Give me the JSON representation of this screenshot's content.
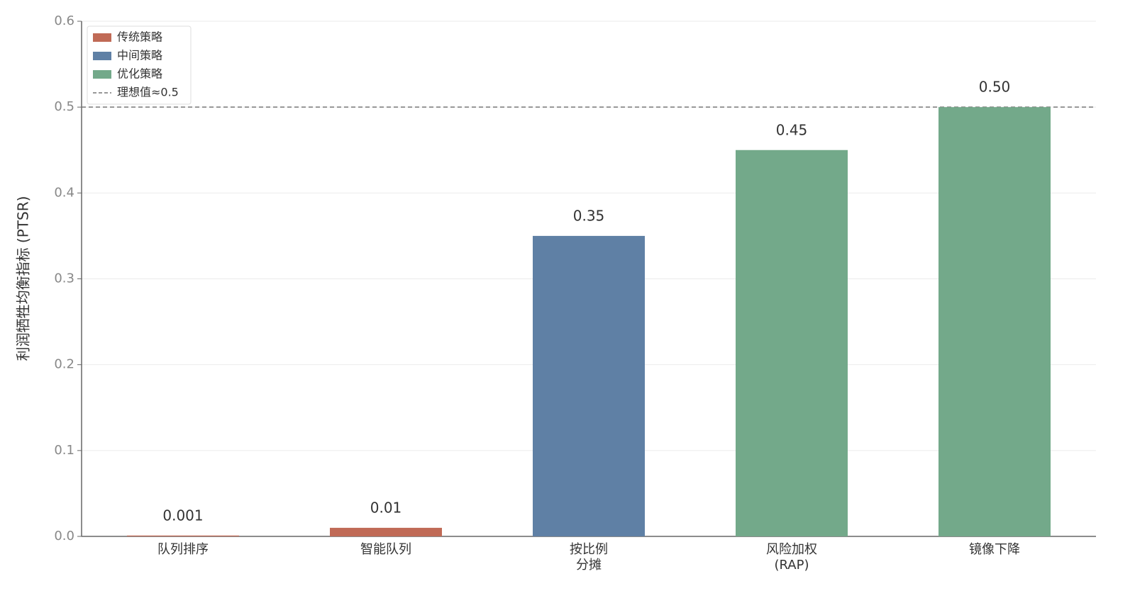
{
  "chart_data": {
    "type": "bar",
    "ylabel": "利润牺牲均衡指标 (PTSR)",
    "categories": [
      [
        "队列排序"
      ],
      [
        "智能队列"
      ],
      [
        "按比例",
        "分摊"
      ],
      [
        "风险加权",
        "(RAP)"
      ],
      [
        "镜像下降"
      ]
    ],
    "series": [
      {
        "name": "传统策略",
        "color": "#c06a56",
        "values": [
          0.001,
          0.01,
          null,
          null,
          null
        ],
        "value_labels": [
          "0.001",
          "0.01",
          null,
          null,
          null
        ]
      },
      {
        "name": "中间策略",
        "color": "#5f80a5",
        "values": [
          null,
          null,
          0.35,
          null,
          null
        ],
        "value_labels": [
          null,
          null,
          "0.35",
          null,
          null
        ]
      },
      {
        "name": "优化策略",
        "color": "#73a98a",
        "values": [
          null,
          null,
          null,
          0.45,
          0.5
        ],
        "value_labels": [
          null,
          null,
          null,
          "0.45",
          "0.50"
        ]
      }
    ],
    "reference_line": {
      "value": 0.5,
      "label": "理想值≈0.5"
    },
    "ylim": [
      0,
      0.6
    ],
    "yticks": [
      {
        "value": 0,
        "label": "0.0"
      },
      0.1,
      0.2,
      0.3,
      0.4,
      0.5,
      0.6
    ],
    "grid": true,
    "legend": "upper left"
  }
}
